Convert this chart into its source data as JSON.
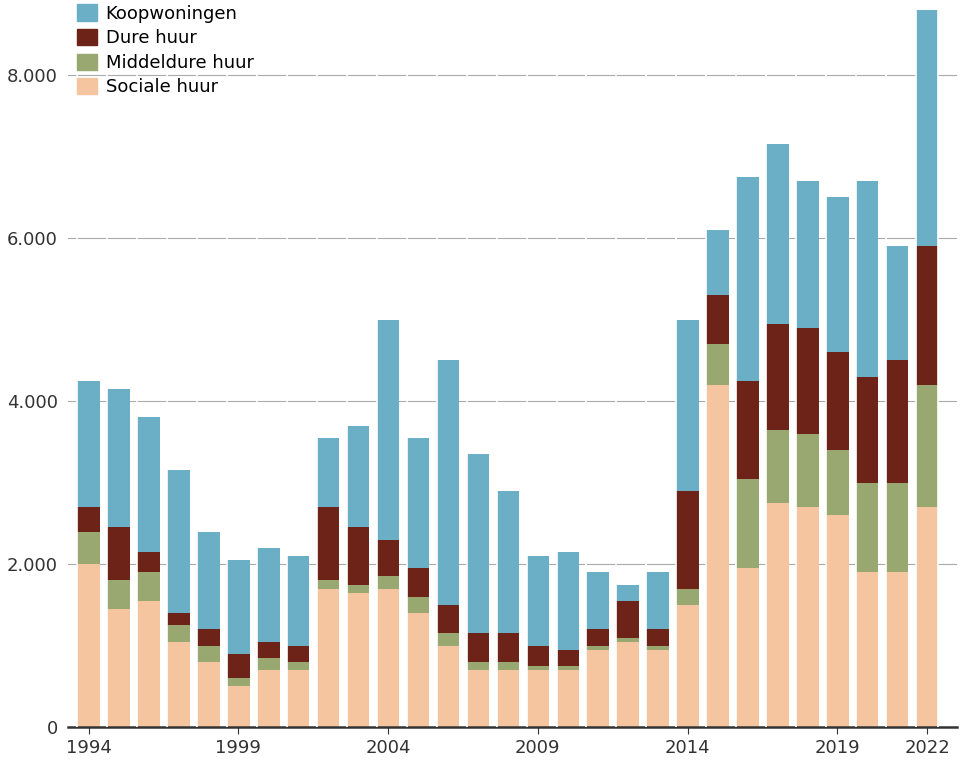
{
  "years": [
    1994,
    1995,
    1996,
    1997,
    1998,
    1999,
    2000,
    2001,
    2002,
    2003,
    2004,
    2005,
    2006,
    2007,
    2008,
    2009,
    2010,
    2011,
    2012,
    2013,
    2014,
    2015,
    2016,
    2017,
    2018,
    2019,
    2020,
    2021,
    2022
  ],
  "sociale_huur": [
    2000,
    1450,
    1550,
    1050,
    800,
    500,
    700,
    700,
    1700,
    1650,
    1700,
    1400,
    1000,
    700,
    700,
    700,
    700,
    950,
    1050,
    950,
    1500,
    4200,
    1950,
    2750,
    2700,
    2600,
    1900,
    1900,
    2700
  ],
  "middeldure_huur": [
    400,
    350,
    350,
    200,
    200,
    100,
    150,
    100,
    100,
    100,
    150,
    200,
    150,
    100,
    100,
    50,
    50,
    50,
    50,
    50,
    200,
    500,
    1100,
    900,
    900,
    800,
    1100,
    1100,
    1500
  ],
  "dure_huur": [
    300,
    650,
    250,
    150,
    200,
    300,
    200,
    200,
    900,
    700,
    450,
    350,
    350,
    350,
    350,
    250,
    200,
    200,
    450,
    200,
    1200,
    600,
    1200,
    1300,
    1300,
    1200,
    1300,
    1500,
    1700
  ],
  "koopwoningen": [
    1550,
    1700,
    1650,
    1750,
    1200,
    1150,
    1150,
    1100,
    850,
    1250,
    2700,
    1600,
    3000,
    2200,
    1750,
    1100,
    1200,
    700,
    200,
    700,
    2100,
    800,
    2500,
    2200,
    1800,
    1900,
    2400,
    1400,
    2900
  ],
  "color_sociale": "#f5c5a0",
  "color_middeldure": "#98a870",
  "color_dure": "#6e2318",
  "color_koop": "#6aafc5",
  "legend_labels": [
    "Koopwoningen",
    "Dure huur",
    "Middeldure huur",
    "Sociale huur"
  ],
  "ylabel_ticks": [
    0,
    2000,
    4000,
    6000,
    8000
  ],
  "tick_labels": [
    "0",
    "2.000",
    "4.000",
    "6.000",
    "8.000"
  ],
  "x_tick_years": [
    1994,
    1999,
    2004,
    2009,
    2014,
    2019,
    2022
  ],
  "background": "#ffffff",
  "grid_color": "#aaaaaa",
  "spine_color": "#333333"
}
